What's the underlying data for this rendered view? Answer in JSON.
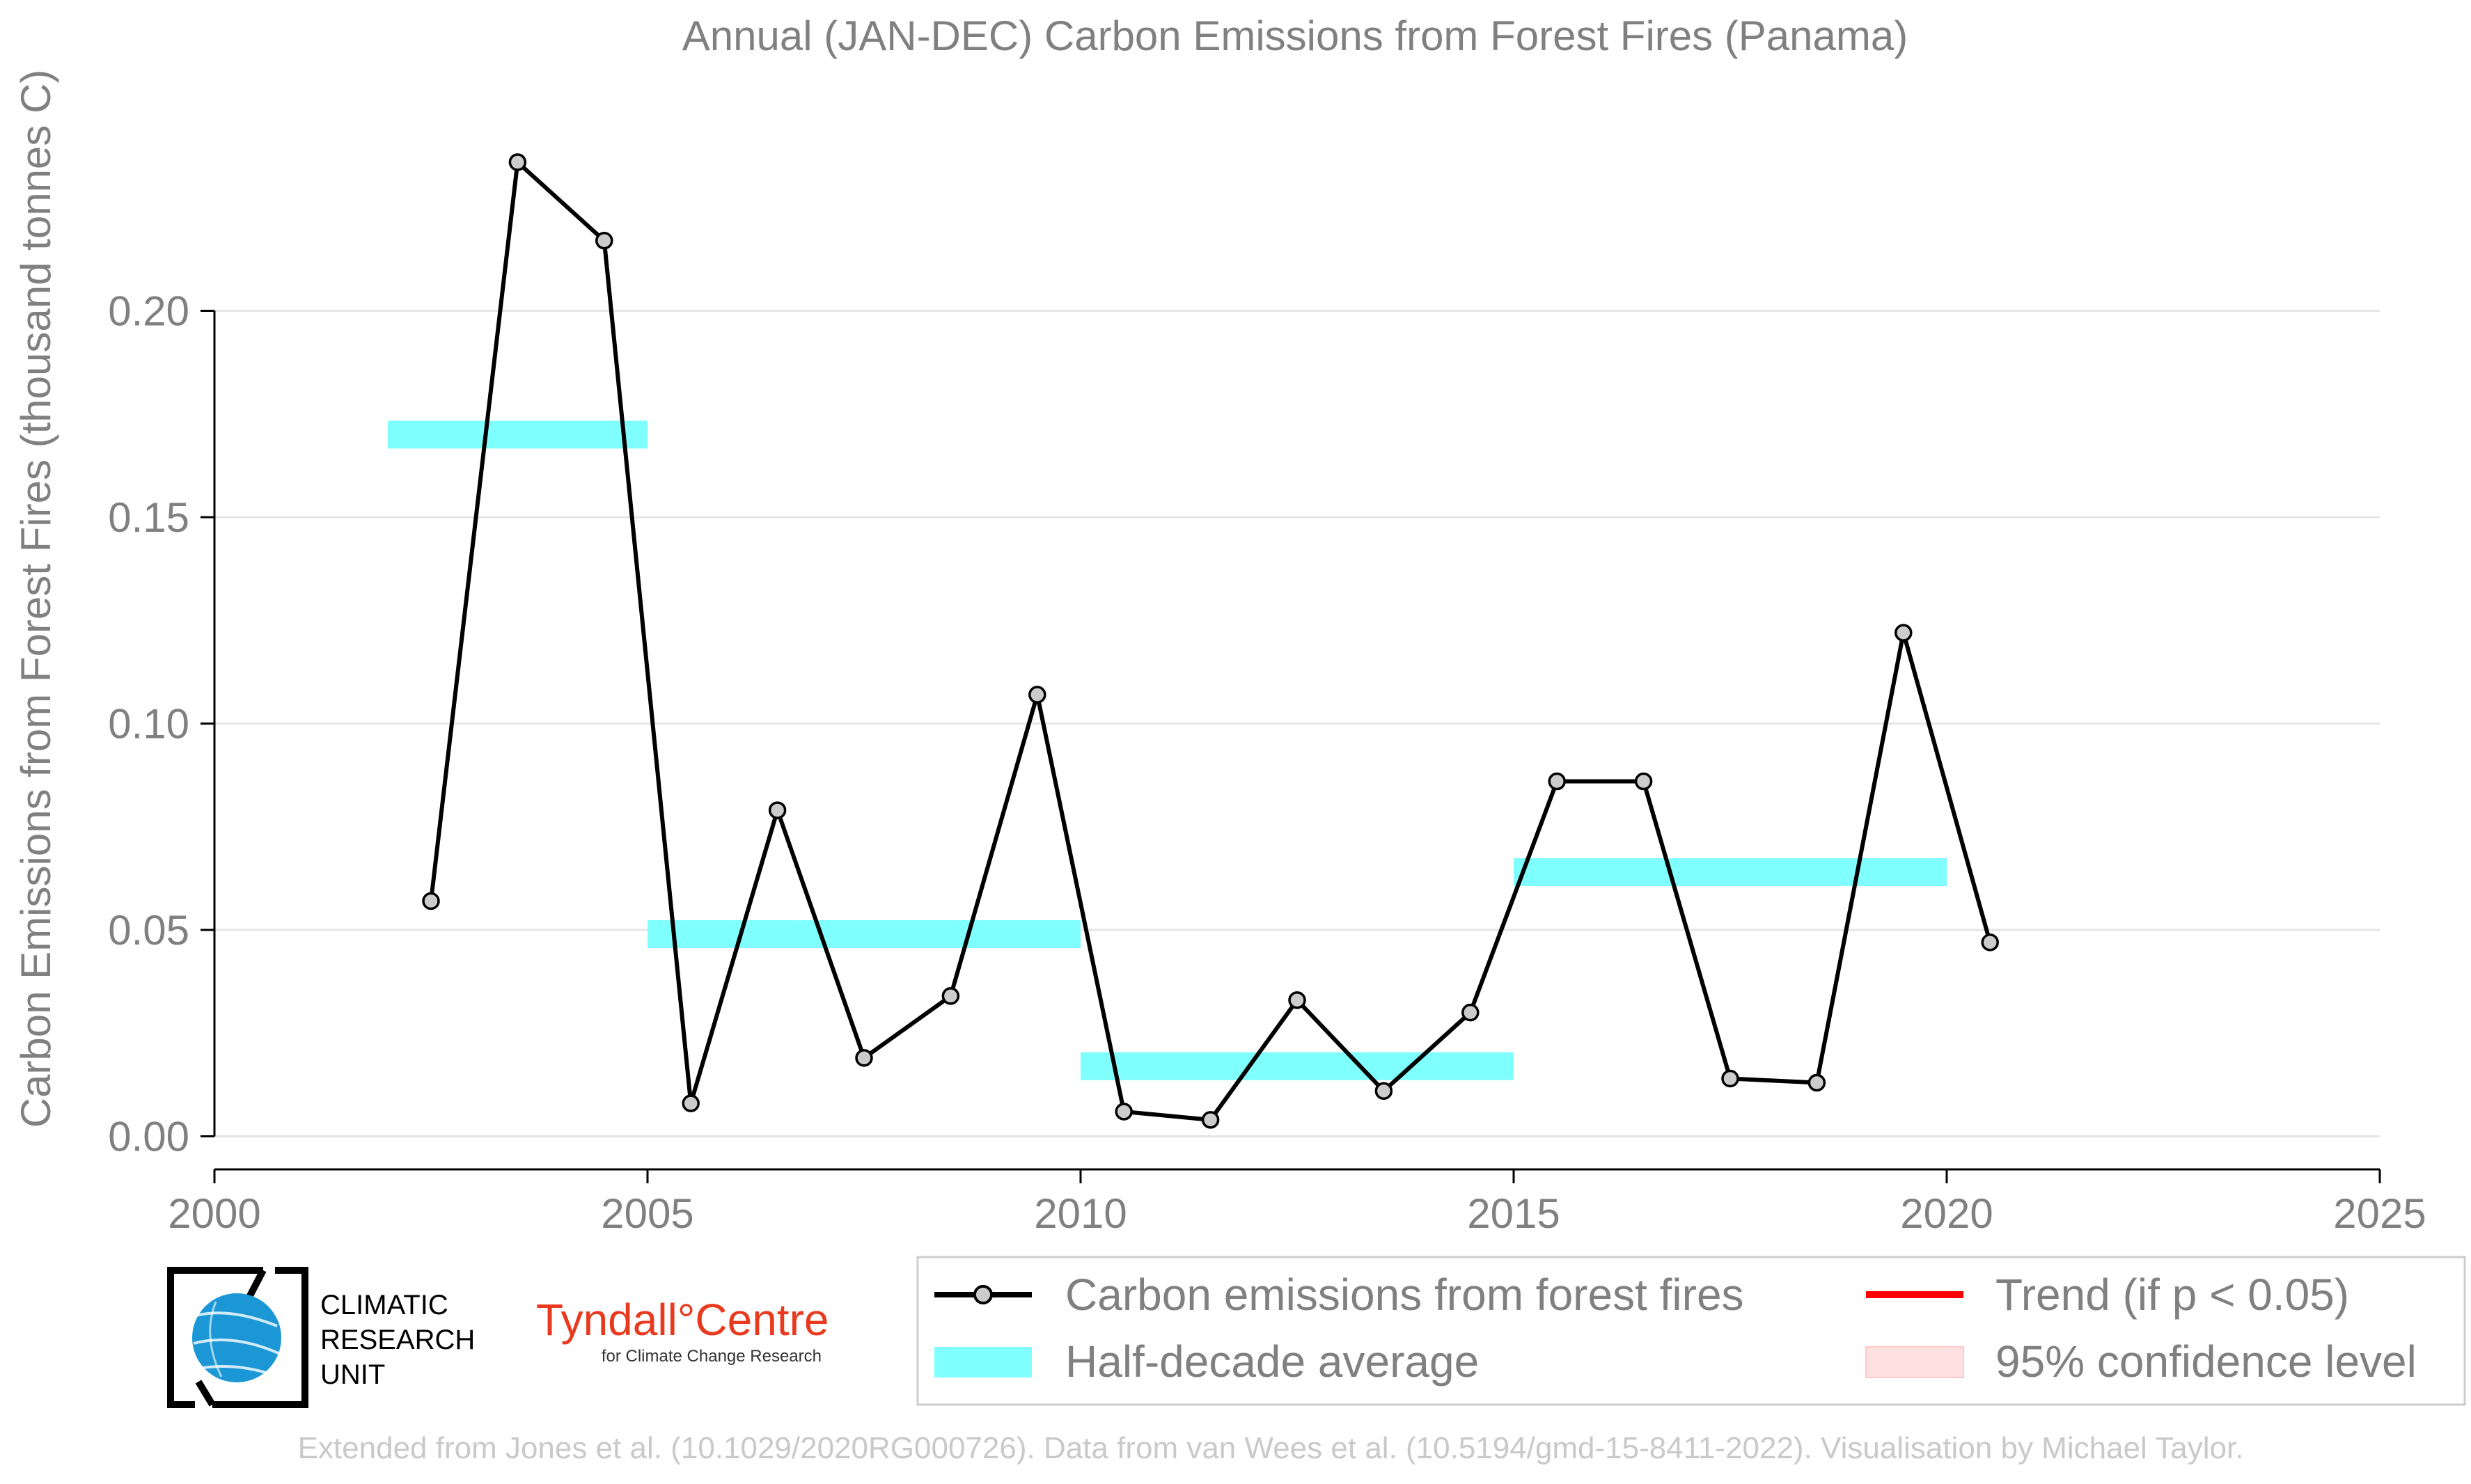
{
  "chart_data": {
    "type": "line",
    "title": "Annual (JAN-DEC) Carbon Emissions from Forest Fires (Panama)",
    "xlabel": "",
    "ylabel": "Carbon Emissions from Forest Fires (thousand tonnes C)",
    "xlim": [
      2000,
      2025
    ],
    "ylim": [
      -0.008,
      0.25
    ],
    "x_ticks": [
      "2000",
      "2005",
      "2010",
      "2015",
      "2020",
      "2025"
    ],
    "y_ticks": [
      "0.00",
      "0.05",
      "0.10",
      "0.15",
      "0.20"
    ],
    "grid": true,
    "legend_position": "bottom",
    "series": [
      {
        "name": "Carbon emissions from forest fires",
        "color": "#000000",
        "x": [
          2002.5,
          2003.5,
          2004.5,
          2005.5,
          2006.5,
          2007.5,
          2008.5,
          2009.5,
          2010.5,
          2011.5,
          2012.5,
          2013.5,
          2014.5,
          2015.5,
          2016.5,
          2017.5,
          2018.5,
          2019.5,
          2020.5
        ],
        "values": [
          0.057,
          0.236,
          0.217,
          0.008,
          0.079,
          0.019,
          0.034,
          0.107,
          0.006,
          0.004,
          0.033,
          0.011,
          0.03,
          0.086,
          0.086,
          0.014,
          0.013,
          0.122,
          0.047
        ]
      }
    ],
    "half_decade_averages": {
      "name": "Half-decade average",
      "color": "#80ffff",
      "segments": [
        {
          "x_start": 2002,
          "x_end": 2005,
          "value": 0.17
        },
        {
          "x_start": 2005,
          "x_end": 2010,
          "value": 0.049
        },
        {
          "x_start": 2010,
          "x_end": 2015,
          "value": 0.017
        },
        {
          "x_start": 2015,
          "x_end": 2020,
          "value": 0.064
        }
      ]
    },
    "legend": [
      {
        "label": "Carbon emissions from forest fires",
        "symbol": "line-marker",
        "color": "#000000"
      },
      {
        "label": "Trend (if p < 0.05)",
        "symbol": "line",
        "color": "#ff0000"
      },
      {
        "label": "Half-decade average",
        "symbol": "band",
        "color": "#80ffff"
      },
      {
        "label": "95% confidence level",
        "symbol": "band",
        "color": "#ffe0e0"
      }
    ]
  },
  "logos": {
    "cru": [
      "CLIMATIC",
      "RESEARCH",
      "UNIT"
    ],
    "tyndall_main": "Tyndall°Centre",
    "tyndall_sub": "for Climate Change Research"
  },
  "footer": "Extended from Jones et al. (10.1029/2020RG000726). Data from van Wees et al. (10.5194/gmd-15-8411-2022). Visualisation by Michael Taylor."
}
